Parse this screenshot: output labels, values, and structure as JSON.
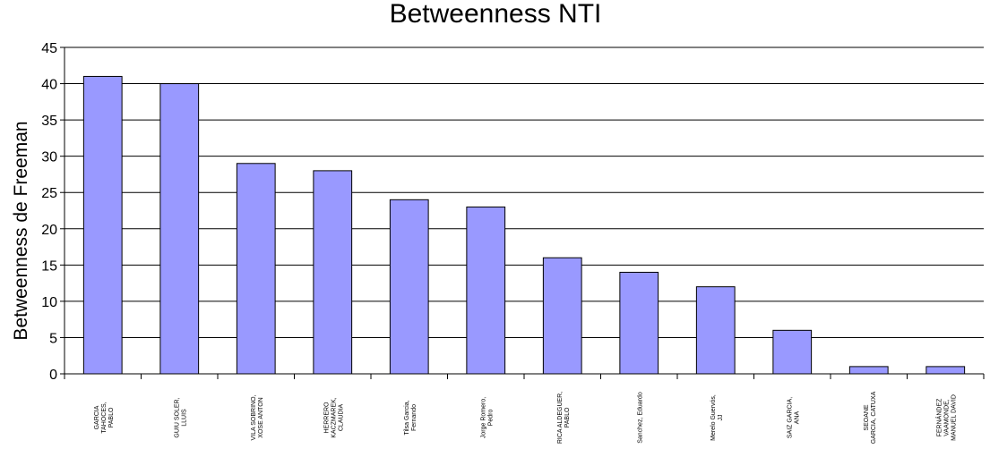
{
  "chart_data": {
    "type": "bar",
    "title": "Betweenness NTI",
    "ylabel": "Betweenness de Freeman",
    "xlabel": "",
    "ylim": [
      0,
      45
    ],
    "yticks": [
      0,
      5,
      10,
      15,
      20,
      25,
      30,
      35,
      40,
      45
    ],
    "grid": true,
    "legend": "none",
    "bar_color": "#9999ff",
    "categories": [
      [
        "GARCIA",
        "TAHOCES,",
        "PABLO"
      ],
      [
        "GUIU SOLER,",
        "LLUIS"
      ],
      [
        "VILA SOBRINO,",
        "XOSE ANTON"
      ],
      [
        "HERRERO",
        "KACZMAREK,",
        "CLAUDIA"
      ],
      [
        "Tilsa Garcia,",
        "Fernando"
      ],
      [
        "Jorge Romero,",
        "Pedro"
      ],
      [
        "RICA ALDEGUER,",
        "PABLO"
      ],
      [
        "Sanchez, Eduardo"
      ],
      [
        "Merelo Guervós,",
        "JJ"
      ],
      [
        "SAIZ GARCIA,",
        "ANA"
      ],
      [
        "SEOANE",
        "GARCIA, CATUXA"
      ],
      [
        "FERNÁNDEZ",
        "VAAMONDE,",
        "MANUEL DAVID"
      ]
    ],
    "values": [
      41,
      40,
      29,
      28,
      24,
      23,
      16,
      14,
      12,
      6,
      1,
      1
    ]
  }
}
